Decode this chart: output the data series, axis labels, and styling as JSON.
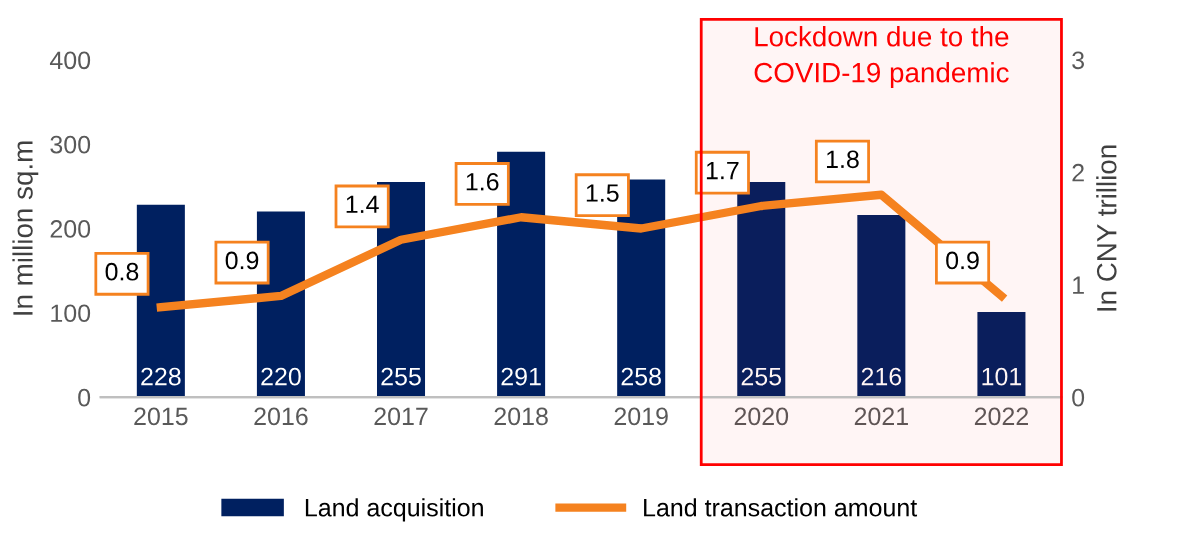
{
  "chart_data": {
    "type": "bar",
    "categories": [
      "2015",
      "2016",
      "2017",
      "2018",
      "2019",
      "2020",
      "2021",
      "2022"
    ],
    "series": [
      {
        "name": "Land acquisition",
        "color": "#002060",
        "values": [
          228,
          220,
          255,
          291,
          258,
          255,
          216,
          101
        ]
      },
      {
        "name": "Land transaction amount",
        "type": "line",
        "axis": "y2",
        "color": "#f5821f",
        "values": [
          0.8,
          0.9,
          1.4,
          1.6,
          1.5,
          1.7,
          1.8,
          0.9
        ]
      }
    ],
    "ylabel": "In million sq.m",
    "y2label": "In CNY trillion",
    "ylim": [
      0,
      400
    ],
    "yticks": [
      0,
      100,
      200,
      300,
      400
    ],
    "y2lim": [
      0,
      3
    ],
    "y2ticks": [
      0,
      1,
      2,
      3
    ],
    "bands": [
      {
        "axis": "x",
        "from": "2020",
        "to": "2022",
        "label": "Lockdown due to the COVID-19 pandemic",
        "color": "#ff0000"
      }
    ],
    "data_labels": true,
    "legend": "bottom",
    "grid": false,
    "marker": "none",
    "line_style": "solid"
  }
}
